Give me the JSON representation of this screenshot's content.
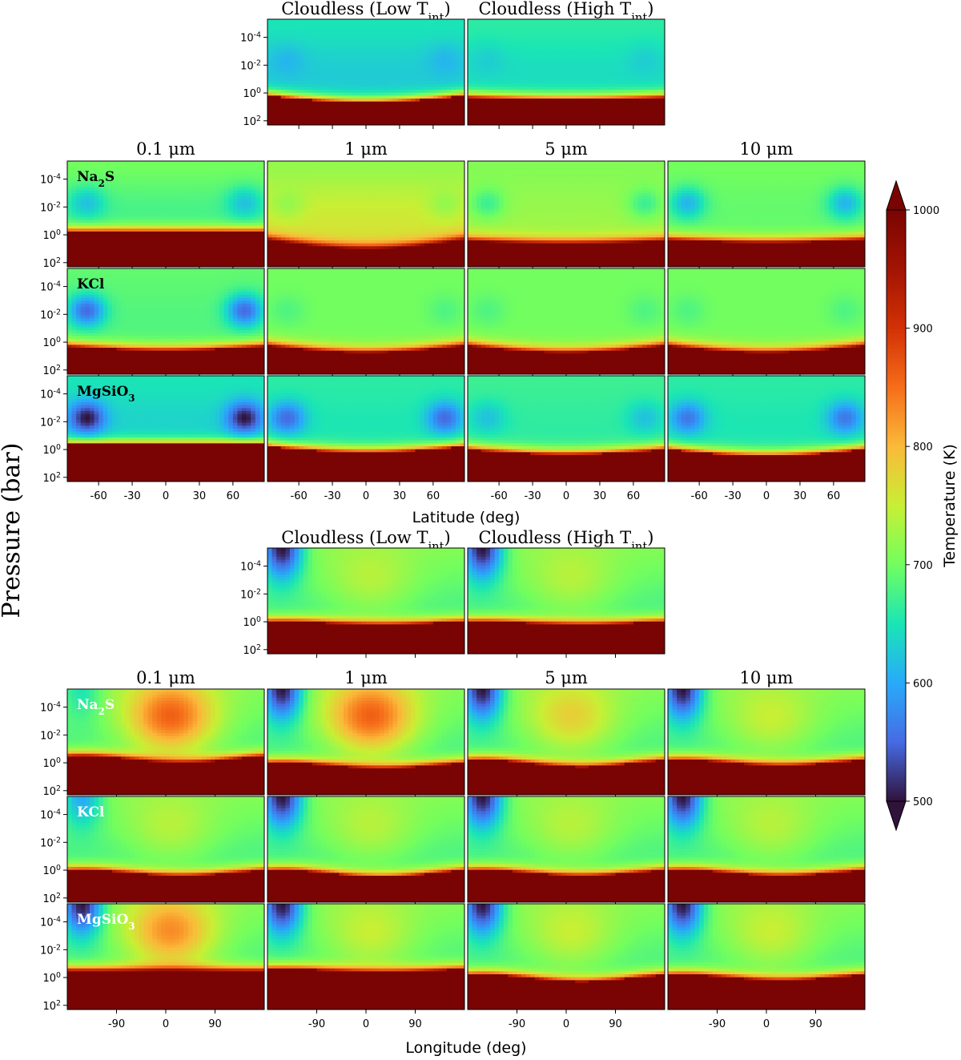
{
  "chart_data": {
    "type": "heatmap",
    "colorbar": {
      "label": "Temperature (K)",
      "vmin": 500,
      "vmax": 1000,
      "ticks": [
        "500",
        "600",
        "700",
        "800",
        "900",
        "1000"
      ],
      "extend": "both",
      "colormap": "turbo"
    },
    "ylabel": "Pressure (bar)",
    "pressure_ticks": [
      {
        "base": "10",
        "exp": "-4"
      },
      {
        "base": "10",
        "exp": "-2"
      },
      {
        "base": "10",
        "exp": "0"
      },
      {
        "base": "10",
        "exp": "2"
      }
    ],
    "pressure_log_range": [
      -5.3,
      2.3
    ],
    "latitude_section": {
      "xlabel": "Latitude (deg)",
      "xticks": [
        "-60",
        "-30",
        "0",
        "30",
        "60"
      ],
      "xtick_values": [
        -60,
        -30,
        0,
        30,
        60
      ],
      "xlim": [
        -88,
        88
      ],
      "cloudless_titles": [
        {
          "main": "Cloudless (Low T",
          "sub": "int",
          "tail": ")"
        },
        {
          "main": "Cloudless (High T",
          "sub": "int",
          "tail": ")"
        }
      ],
      "size_titles": [
        "0.1 μm",
        "1 μm",
        "5 μm",
        "10 μm"
      ],
      "species": [
        {
          "main": "Na",
          "sub": "2",
          "tail": "S"
        },
        {
          "main": "KCl",
          "sub": "",
          "tail": ""
        },
        {
          "main": "MgSiO",
          "sub": "3",
          "tail": ""
        }
      ]
    },
    "longitude_section": {
      "xlabel": "Longitude (deg)",
      "xticks": [
        "-90",
        "0",
        "90"
      ],
      "xtick_values": [
        -90,
        0,
        90
      ],
      "xlim": [
        -180,
        180
      ],
      "cloudless_titles": [
        {
          "main": "Cloudless (Low T",
          "sub": "int",
          "tail": ")"
        },
        {
          "main": "Cloudless (High T",
          "sub": "int",
          "tail": ")"
        }
      ],
      "size_titles": [
        "0.1 μm",
        "1 μm",
        "5 μm",
        "10 μm"
      ],
      "species": [
        {
          "main": "Na",
          "sub": "2",
          "tail": "S"
        },
        {
          "main": "KCl",
          "sub": "",
          "tail": ""
        },
        {
          "main": "MgSiO",
          "sub": "3",
          "tail": ""
        }
      ]
    },
    "lat_panels": {
      "cloudless": [
        {
          "deep": [
            0.2,
            0.65
          ],
          "up": 0.25,
          "vf": 0.3,
          "vtip": 0.22
        },
        {
          "deep": [
            0.3,
            0.45
          ],
          "up": 0.28,
          "vf": 0.32,
          "vtip": 0.26
        }
      ],
      "grid": [
        [
          {
            "deep": [
              -0.2,
              -0.2
            ],
            "up": 0.34,
            "vf": 0.4,
            "vtip": 0.24
          },
          {
            "deep": [
              0.4,
              1.05
            ],
            "up": 0.52,
            "vf": 0.44,
            "vtip": 0.44
          },
          {
            "deep": [
              0.45,
              0.65
            ],
            "up": 0.45,
            "vf": 0.42,
            "vtip": 0.34
          },
          {
            "deep": [
              0.35,
              0.55
            ],
            "up": 0.38,
            "vf": 0.4,
            "vtip": 0.22
          }
        ],
        [
          {
            "deep": [
              0.3,
              0.6
            ],
            "up": 0.36,
            "vf": 0.38,
            "vtip": 0.1
          },
          {
            "deep": [
              0.25,
              0.75
            ],
            "up": 0.4,
            "vf": 0.4,
            "vtip": 0.36
          },
          {
            "deep": [
              0.25,
              0.75
            ],
            "up": 0.4,
            "vf": 0.4,
            "vtip": 0.36
          },
          {
            "deep": [
              0.25,
              0.75
            ],
            "up": 0.4,
            "vf": 0.4,
            "vtip": 0.36
          }
        ],
        [
          {
            "deep": [
              -0.35,
              -0.35
            ],
            "up": 0.26,
            "vf": 0.3,
            "vtip": 0.0
          },
          {
            "deep": [
              -0.2,
              0.2
            ],
            "up": 0.3,
            "vf": 0.32,
            "vtip": 0.1
          },
          {
            "deep": [
              0.0,
              0.35
            ],
            "up": 0.32,
            "vf": 0.34,
            "vtip": 0.24
          },
          {
            "deep": [
              0.0,
              0.45
            ],
            "up": 0.3,
            "vf": 0.32,
            "vtip": 0.12
          }
        ]
      ]
    },
    "lon_panels": {
      "cloudless": [
        {
          "deep": [
            0.0,
            0.2
          ],
          "hot": 0.48,
          "cold": 0.0
        },
        {
          "deep": [
            0.0,
            0.2
          ],
          "hot": 0.48,
          "cold": 0.0
        }
      ],
      "grid": [
        [
          {
            "deep": [
              -0.5,
              0.0
            ],
            "hot": 0.72,
            "cold": 0.3
          },
          {
            "deep": [
              0.0,
              0.4
            ],
            "hot": 0.72,
            "cold": 0.0
          },
          {
            "deep": [
              -0.2,
              0.3
            ],
            "hot": 0.56,
            "cold": 0.0
          },
          {
            "deep": [
              -0.2,
              0.2
            ],
            "hot": 0.5,
            "cold": 0.0
          }
        ],
        [
          {
            "deep": [
              0.0,
              0.4
            ],
            "hot": 0.48,
            "cold": 0.2
          },
          {
            "deep": [
              0.0,
              0.5
            ],
            "hot": 0.48,
            "cold": 0.0
          },
          {
            "deep": [
              0.0,
              0.4
            ],
            "hot": 0.48,
            "cold": 0.0
          },
          {
            "deep": [
              0.0,
              0.4
            ],
            "hot": 0.48,
            "cold": 0.0
          }
        ],
        [
          {
            "deep": [
              -0.5,
              -0.5
            ],
            "hot": 0.66,
            "cold": 0.0
          },
          {
            "deep": [
              -0.6,
              -0.4
            ],
            "hot": 0.5,
            "cold": 0.0
          },
          {
            "deep": [
              -0.2,
              0.3
            ],
            "hot": 0.5,
            "cold": 0.0
          },
          {
            "deep": [
              -0.2,
              0.2
            ],
            "hot": 0.5,
            "cold": 0.0
          }
        ]
      ]
    }
  }
}
